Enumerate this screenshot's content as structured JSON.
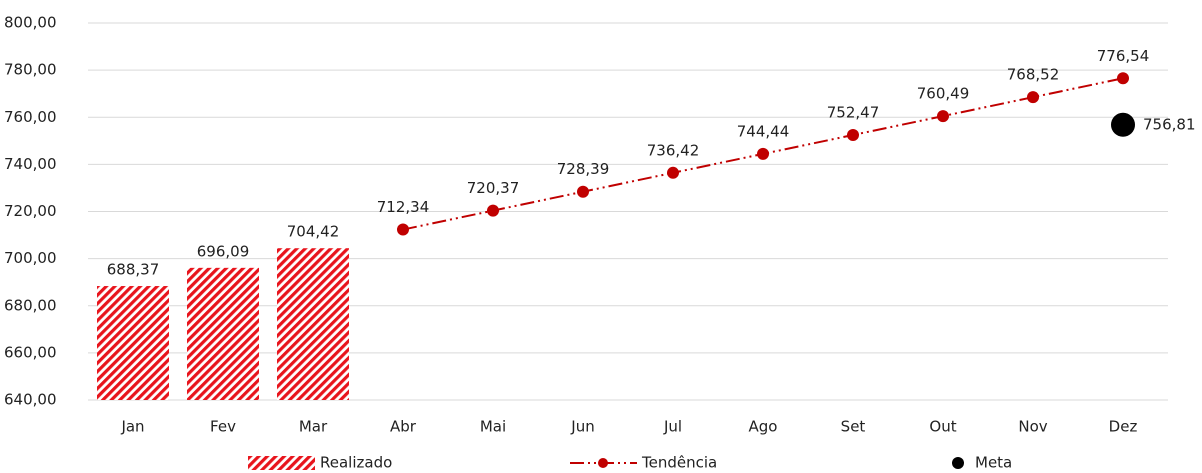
{
  "chart_data": {
    "type": "combo",
    "categories": [
      "Jan",
      "Fev",
      "Mar",
      "Abr",
      "Mai",
      "Jun",
      "Jul",
      "Ago",
      "Set",
      "Out",
      "Nov",
      "Dez"
    ],
    "ylim": [
      640,
      800
    ],
    "yticks": [
      {
        "value": 640,
        "label": "640,00"
      },
      {
        "value": 660,
        "label": "660,00"
      },
      {
        "value": 680,
        "label": "680,00"
      },
      {
        "value": 700,
        "label": "700,00"
      },
      {
        "value": 720,
        "label": "720,00"
      },
      {
        "value": 740,
        "label": "740,00"
      },
      {
        "value": 760,
        "label": "760,00"
      },
      {
        "value": 780,
        "label": "780,00"
      },
      {
        "value": 800,
        "label": "800,00"
      }
    ],
    "grid": true,
    "legend": "bottom",
    "series": [
      {
        "name": "Realizado",
        "type": "bar",
        "color": "#e8141c",
        "values": [
          688.37,
          696.09,
          704.42,
          null,
          null,
          null,
          null,
          null,
          null,
          null,
          null,
          null
        ],
        "value_labels": [
          "688,37",
          "696,09",
          "704,42",
          null,
          null,
          null,
          null,
          null,
          null,
          null,
          null,
          null
        ]
      },
      {
        "name": "Tendência",
        "type": "line",
        "color": "#c00000",
        "values": [
          null,
          null,
          null,
          712.34,
          720.37,
          728.39,
          736.42,
          744.44,
          752.47,
          760.49,
          768.52,
          776.54
        ],
        "value_labels": [
          null,
          null,
          null,
          "712,34",
          "720,37",
          "728,39",
          "736,42",
          "744,44",
          "752,47",
          "760,49",
          "768,52",
          "776,54"
        ]
      },
      {
        "name": "Meta",
        "type": "scatter",
        "color": "#000000",
        "values": [
          null,
          null,
          null,
          null,
          null,
          null,
          null,
          null,
          null,
          null,
          null,
          756.81
        ],
        "value_labels": [
          null,
          null,
          null,
          null,
          null,
          null,
          null,
          null,
          null,
          null,
          null,
          "756,81"
        ]
      }
    ]
  }
}
